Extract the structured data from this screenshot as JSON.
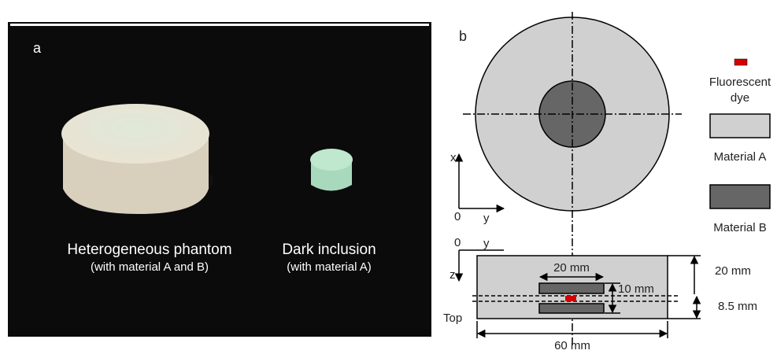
{
  "panel_a": {
    "label": "a",
    "objects": [
      {
        "title": "Heterogeneous phantom",
        "subtitle": "(with material A and B)"
      },
      {
        "title": "Dark inclusion",
        "subtitle": "(with material A)"
      }
    ]
  },
  "panel_b": {
    "label": "b",
    "top_view_axes": {
      "vertical": "x",
      "horizontal": "y",
      "origin": "0"
    },
    "side_view_axes": {
      "vertical": "z",
      "horizontal": "y",
      "origin": "0",
      "view": "Top"
    },
    "dimensions": {
      "inclusion_width": "20 mm",
      "inclusion_height": "10 mm",
      "phantom_height": "20 mm",
      "dye_depth": "8.5 mm",
      "phantom_width": "60 mm"
    },
    "legend": [
      {
        "lines": [
          "Fluorescent",
          "dye"
        ]
      },
      {
        "lines": [
          "Material A"
        ]
      },
      {
        "lines": [
          "Material B"
        ]
      }
    ]
  }
}
